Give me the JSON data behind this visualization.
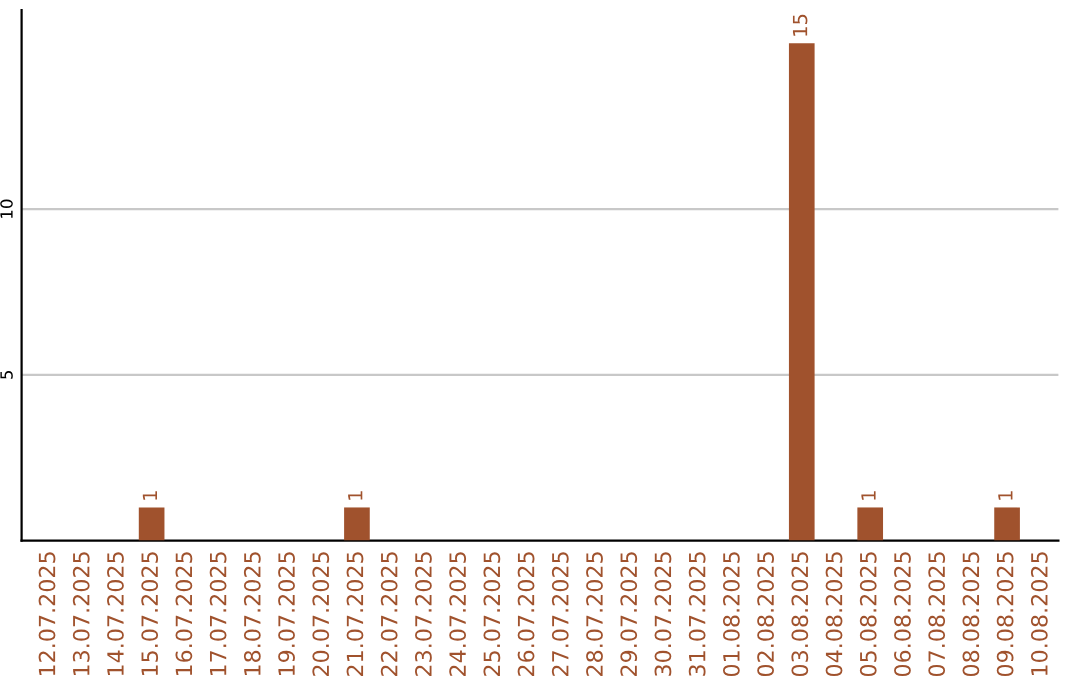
{
  "chart_data": {
    "type": "bar",
    "categories": [
      "12.07.2025",
      "13.07.2025",
      "14.07.2025",
      "15.07.2025",
      "16.07.2025",
      "17.07.2025",
      "18.07.2025",
      "19.07.2025",
      "20.07.2025",
      "21.07.2025",
      "22.07.2025",
      "23.07.2025",
      "24.07.2025",
      "25.07.2025",
      "26.07.2025",
      "27.07.2025",
      "28.07.2025",
      "29.07.2025",
      "30.07.2025",
      "31.07.2025",
      "01.08.2025",
      "02.08.2025",
      "03.08.2025",
      "04.08.2025",
      "05.08.2025",
      "06.08.2025",
      "07.08.2025",
      "08.08.2025",
      "09.08.2025",
      "10.08.2025"
    ],
    "values": [
      0,
      0,
      0,
      1,
      0,
      0,
      0,
      0,
      0,
      1,
      0,
      0,
      0,
      0,
      0,
      0,
      0,
      0,
      0,
      0,
      0,
      0,
      15,
      0,
      1,
      0,
      0,
      0,
      1,
      0
    ],
    "value_labels": [
      null,
      null,
      null,
      "1",
      null,
      null,
      null,
      null,
      null,
      "1",
      null,
      null,
      null,
      null,
      null,
      null,
      null,
      null,
      null,
      null,
      null,
      null,
      "15",
      null,
      "1",
      null,
      null,
      null,
      "1",
      null
    ],
    "color": "#a0522d",
    "ylim": [
      0,
      16
    ],
    "yticks": [
      5,
      10
    ],
    "grid": "y"
  }
}
